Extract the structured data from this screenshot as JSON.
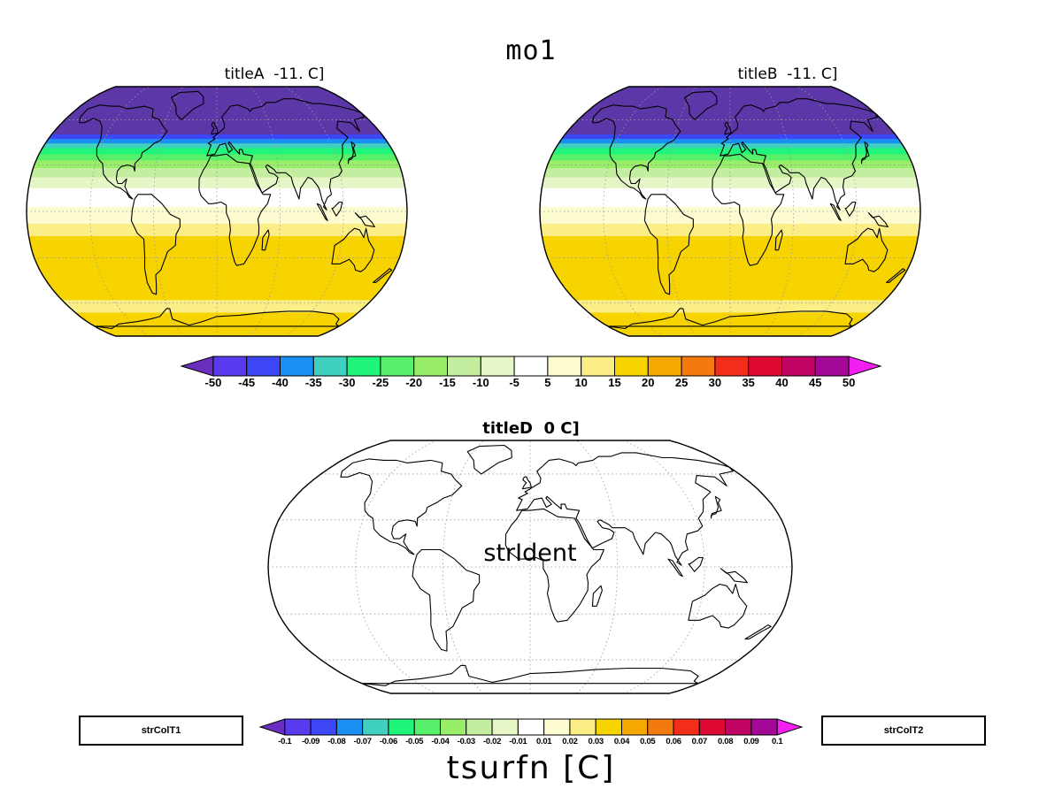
{
  "main_title": "mo1",
  "panels": {
    "a": {
      "title": "titleA  -11. C]"
    },
    "b": {
      "title": "titleB  -11. C]"
    },
    "d": {
      "title": "titleD  0 C]",
      "center_text": "strIdent"
    }
  },
  "colorbar_top": {
    "colors": [
      "#6a2fbf",
      "#5a3aef",
      "#3c46f5",
      "#1a8ff2",
      "#3fd0c0",
      "#1ef57a",
      "#56f06a",
      "#98ee68",
      "#c3eea0",
      "#e6f6c6",
      "#ffffff",
      "#fdfbd0",
      "#fbee86",
      "#f7d400",
      "#f5a900",
      "#f47a10",
      "#f22e1a",
      "#de0932",
      "#c10464",
      "#a30996",
      "#f21ef2"
    ],
    "labels": [
      "-50",
      "-45",
      "-40",
      "-35",
      "-30",
      "-25",
      "-20",
      "-15",
      "-10",
      "-5",
      "5",
      "10",
      "15",
      "20",
      "25",
      "30",
      "35",
      "40",
      "45",
      "50"
    ]
  },
  "colorbar_bottom": {
    "colors": [
      "#6a2fbf",
      "#5a3aef",
      "#3c46f5",
      "#1a8ff2",
      "#3fd0c0",
      "#1ef57a",
      "#56f06a",
      "#98ee68",
      "#c3eea0",
      "#e6f6c6",
      "#ffffff",
      "#fdfbd0",
      "#fbee86",
      "#f7d400",
      "#f5a900",
      "#f47a10",
      "#f22e1a",
      "#de0932",
      "#c10464",
      "#a30996",
      "#f21ef2"
    ],
    "labels": [
      "-0.1",
      "-0.09",
      "-0.08",
      "-0.07",
      "-0.06",
      "-0.05",
      "-0.04",
      "-0.03",
      "-0.02",
      "-0.01",
      "0.01",
      "0.02",
      "0.03",
      "0.04",
      "0.05",
      "0.06",
      "0.07",
      "0.08",
      "0.09",
      "0.1"
    ]
  },
  "boxes": {
    "left": "strColT1",
    "right": "strColT2"
  },
  "variable_label": "tsurfn  [C]",
  "map_bands": [
    {
      "lat_top": 90,
      "lat_bottom": 50,
      "color": "#5c37a8"
    },
    {
      "lat_top": 50,
      "lat_bottom": 47,
      "color": "#3c46f5"
    },
    {
      "lat_top": 47,
      "lat_bottom": 44,
      "color": "#1a8ff2"
    },
    {
      "lat_top": 44,
      "lat_bottom": 41,
      "color": "#3fd0c0"
    },
    {
      "lat_top": 41,
      "lat_bottom": 37,
      "color": "#1ef57a"
    },
    {
      "lat_top": 37,
      "lat_bottom": 33,
      "color": "#56f06a"
    },
    {
      "lat_top": 33,
      "lat_bottom": 28,
      "color": "#98ee68"
    },
    {
      "lat_top": 28,
      "lat_bottom": 22,
      "color": "#c3eea0"
    },
    {
      "lat_top": 22,
      "lat_bottom": 15,
      "color": "#e6f6c6"
    },
    {
      "lat_top": 15,
      "lat_bottom": 3,
      "color": "#ffffff"
    },
    {
      "lat_top": 3,
      "lat_bottom": -8,
      "color": "#fdfbd0"
    },
    {
      "lat_top": -8,
      "lat_bottom": -16,
      "color": "#fbee86"
    },
    {
      "lat_top": -16,
      "lat_bottom": -58,
      "color": "#f7d400"
    },
    {
      "lat_top": -58,
      "lat_bottom": -67,
      "color": "#fbee86"
    },
    {
      "lat_top": -67,
      "lat_bottom": -90,
      "color": "#f7d400"
    }
  ]
}
